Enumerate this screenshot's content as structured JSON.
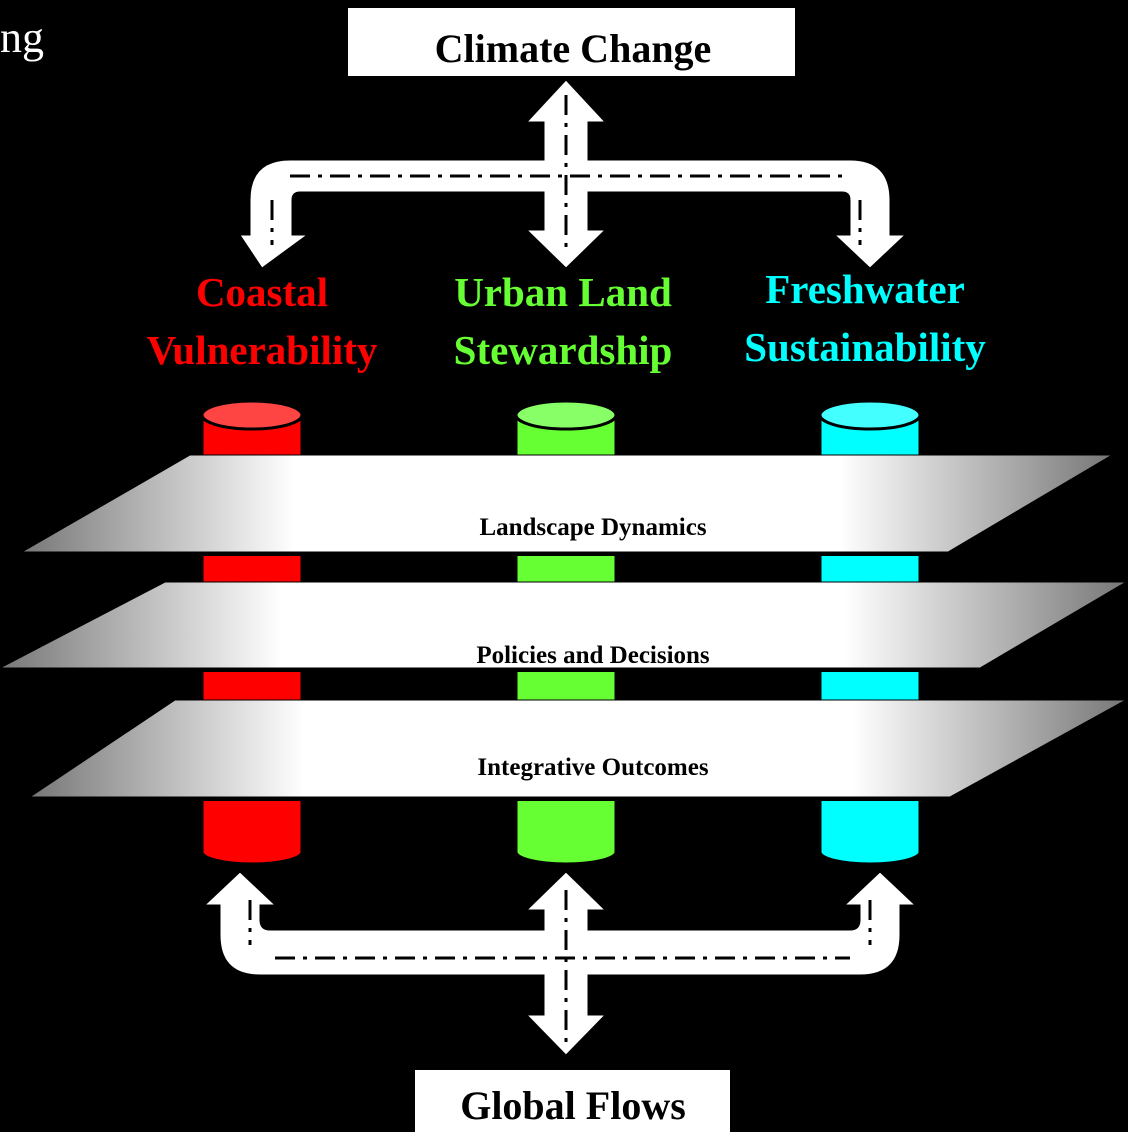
{
  "header": {
    "fragment": "ng"
  },
  "top_box": {
    "label": "Climate Change"
  },
  "themes": [
    {
      "lines": [
        "Coastal",
        "Vulnerability"
      ]
    },
    {
      "lines": [
        "Urban Land",
        "Stewardship"
      ]
    },
    {
      "lines": [
        "Freshwater",
        "Sustainability"
      ]
    }
  ],
  "layers": [
    {
      "label": "Landscape Dynamics"
    },
    {
      "label": "Policies and Decisions"
    },
    {
      "label": "Integrative Outcomes"
    }
  ],
  "bottom_box": {
    "label": "Global Flows"
  }
}
